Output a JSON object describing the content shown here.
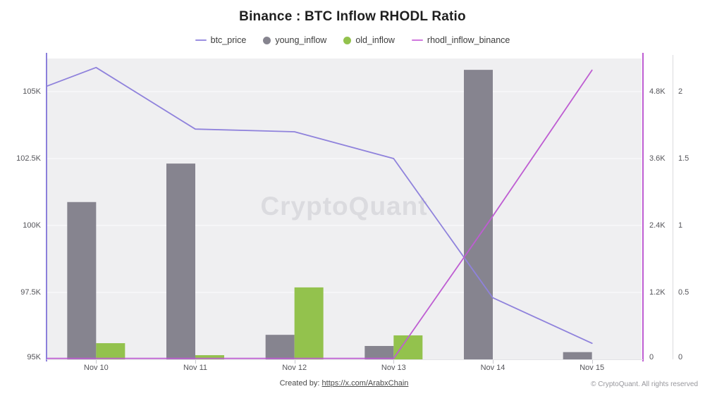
{
  "title": "Binance : BTC Inflow RHODL Ratio",
  "legend": [
    {
      "label": "btc_price",
      "marker": "line",
      "color": "#9a8fe0"
    },
    {
      "label": "young_inflow",
      "marker": "circle",
      "color": "#86848f"
    },
    {
      "label": "old_inflow",
      "marker": "circle",
      "color": "#93c24d"
    },
    {
      "label": "rhodl_inflow_binance",
      "marker": "line",
      "color": "#d078de"
    }
  ],
  "watermark": "CryptoQuant",
  "footer": {
    "created_by_label": "Created by:",
    "created_by_link": "https://x.com/ArabxChain",
    "copyright": "© CryptoQuant. All rights reserved"
  },
  "chart_data": {
    "type": "bar",
    "subtype": "mixed bar + line, multi-axis",
    "categories": [
      "Nov 10",
      "Nov 11",
      "Nov 12",
      "Nov 13",
      "Nov 14",
      "Nov 15"
    ],
    "series": [
      {
        "name": "btc_price",
        "type": "line",
        "axis": "price",
        "color": "#8f82dc",
        "values": [
          105900,
          103600,
          103500,
          102500,
          97300,
          95600
        ],
        "enters_from_left_edge_at": 105200
      },
      {
        "name": "young_inflow",
        "type": "bar",
        "axis": "inflow",
        "color": "#86848f",
        "values": [
          2820,
          3510,
          440,
          240,
          5190,
          130
        ]
      },
      {
        "name": "old_inflow",
        "type": "bar",
        "axis": "inflow",
        "color": "#93c24d",
        "values": [
          290,
          75,
          1290,
          430,
          0,
          0
        ]
      },
      {
        "name": "rhodl_inflow_binance",
        "type": "line",
        "axis": "ratio",
        "color": "#be5dd2",
        "values": [
          0,
          0,
          0,
          0,
          1.07,
          2.16
        ],
        "enters_from_left_edge_at": 0
      }
    ],
    "axes": {
      "price": {
        "side": "left",
        "tick_labels": [
          "95K",
          "97.5K",
          "100K",
          "102.5K",
          "105K"
        ],
        "tick_values": [
          95000,
          97500,
          100000,
          102500,
          105000
        ],
        "min": 95000,
        "max": 106230,
        "line_color": "#8c80db"
      },
      "inflow": {
        "side": "right-inner",
        "tick_labels": [
          "0",
          "1.2K",
          "2.4K",
          "3.6K",
          "4.8K"
        ],
        "tick_values": [
          0,
          1200,
          2400,
          3600,
          4800
        ],
        "min": 0,
        "max": 5394,
        "line_color": "#be5dd2"
      },
      "ratio": {
        "side": "right-outer",
        "tick_labels": [
          "0",
          "0.5",
          "1",
          "1.5",
          "2"
        ],
        "tick_values": [
          0,
          0.5,
          1,
          1.5,
          2
        ],
        "min": 0,
        "max": 2.247,
        "line_color": "#dadade"
      }
    },
    "grid": true,
    "legend_position": "top",
    "plot_background": "#efeff1",
    "gridline_color": "#f8f8fa"
  }
}
